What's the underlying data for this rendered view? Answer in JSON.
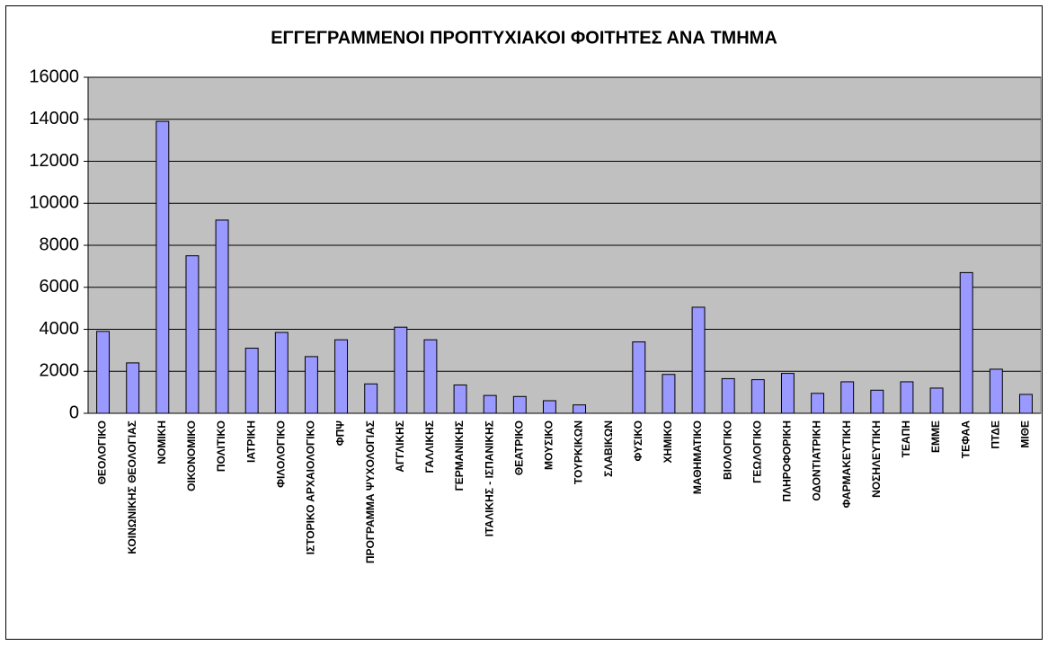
{
  "chart_data": {
    "type": "bar",
    "title": "ΕΓΓΕΓΡΑΜΜΕΝΟΙ ΠΡΟΠΤΥΧΙΑΚΟΙ ΦΟΙΤΗΤΕΣ ΑΝΑ ΤΜΗΜΑ",
    "categories": [
      "ΘΕΟΛΟΓΙΚΟ",
      "ΚΟΙΝΩΝΙΚΗΣ ΘΕΟΛΟΓΙΑΣ",
      "ΝΟΜΙΚΗ",
      "ΟΙΚΟΝΟΜΙΚΟ",
      "ΠΟΛΙΤΙΚΟ",
      "ΙΑΤΡΙΚΗ",
      "ΦΙΛΟΛΟΓΙΚΟ",
      "ΙΣΤΟΡΙΚΟ ΑΡΧΑΙΟΛΟΓΙΚΟ",
      "ΦΠΨ",
      "ΠΡΟΓΡΑΜΜΑ ΨΥΧΟΛΟΓΙΑΣ",
      "ΑΓΓΛΙΚΗΣ",
      "ΓΑΛΛΙΚΗΣ",
      "ΓΕΡΜΑΝΙΚΗΣ",
      "ΙΤΑΛΙΚΗΣ - ΙΣΠΑΝΙΚΗΣ",
      "ΘΕΑΤΡΙΚΟ",
      "ΜΟΥΣΙΚΟ",
      "ΤΟΥΡΚΙΚΩΝ",
      "ΣΛΑΒΙΚΩΝ",
      "ΦΥΣΙΚΟ",
      "ΧΗΜΙΚΟ",
      "ΜΑΘΗΜΑΤΙΚΟ",
      "ΒΙΟΛΟΓΙΚΟ",
      "ΓΕΩΛΟΓΙΚΟ",
      "ΠΛΗΡΟΦΟΡΙΚΗ",
      "ΟΔΟΝΤΙΑΤΡΙΚΗ",
      "ΦΑΡΜΑΚΕΥΤΙΚΗ",
      "ΝΟΣΗΛΕΥΤΙΚΗ",
      "ΤΕΑΠΗ",
      "ΕΜΜΕ",
      "ΤΕΦΑΑ",
      "ΠΤΔΕ",
      "ΜΙΘΕ"
    ],
    "values": [
      3900,
      2400,
      13900,
      7500,
      9200,
      3100,
      3850,
      2700,
      3500,
      1400,
      4100,
      3500,
      1350,
      850,
      800,
      600,
      400,
      0,
      3400,
      1850,
      5050,
      1650,
      1600,
      1900,
      950,
      1500,
      1100,
      1500,
      1200,
      6700,
      2100,
      900
    ],
    "color": "#9999ff",
    "ylim": [
      0,
      16000
    ],
    "yticks": [
      0,
      2000,
      4000,
      6000,
      8000,
      10000,
      12000,
      14000,
      16000
    ],
    "grid": true
  }
}
